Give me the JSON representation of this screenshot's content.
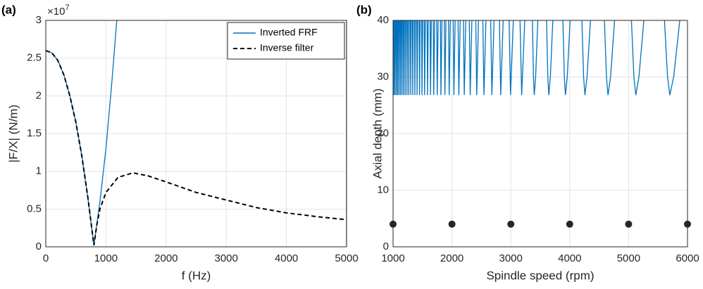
{
  "chart_data": [
    {
      "type": "line",
      "panel_label": "(a)",
      "xlabel": "f (Hz)",
      "ylabel": "|F/X| (N/m)",
      "y_multiplier": {
        "base": "×10",
        "exponent": 7
      },
      "xlim": [
        0,
        5000
      ],
      "xticks": [
        0,
        1000,
        2000,
        3000,
        4000,
        5000
      ],
      "ylim": [
        0,
        3
      ],
      "yticks": [
        0,
        0.5,
        1,
        1.5,
        2,
        2.5,
        3
      ],
      "grid": true,
      "legend": "upper right",
      "series": [
        {
          "name": "Inverted FRF",
          "color": "#0072bd",
          "linestyle": "solid",
          "x": [
            0,
            100,
            200,
            300,
            400,
            500,
            600,
            700,
            800,
            900,
            1000,
            1100,
            1180,
            null,
            5000,
            5000
          ],
          "values": [
            2.6,
            2.57,
            2.47,
            2.28,
            2.0,
            1.65,
            1.2,
            0.65,
            0.02,
            0.6,
            1.3,
            2.2,
            3,
            null,
            0.02,
            3
          ]
        },
        {
          "name": "Inverse filter",
          "color": "#000000",
          "linestyle": "dashed",
          "x": [
            0,
            100,
            200,
            300,
            400,
            500,
            600,
            700,
            800,
            850,
            900,
            1000,
            1200,
            1450,
            1700,
            2000,
            2500,
            3000,
            3500,
            4000,
            4500,
            5000
          ],
          "values": [
            2.6,
            2.57,
            2.47,
            2.28,
            2.0,
            1.65,
            1.2,
            0.65,
            0.02,
            0.3,
            0.5,
            0.72,
            0.92,
            0.98,
            0.94,
            0.86,
            0.72,
            0.62,
            0.52,
            0.45,
            0.4,
            0.36
          ]
        }
      ]
    },
    {
      "type": "line",
      "panel_label": "(b)",
      "xlabel": "Spindle speed (rpm)",
      "ylabel": "Axial depth (mm)",
      "xlim": [
        1000,
        6000
      ],
      "xticks": [
        1000,
        2000,
        3000,
        4000,
        5000,
        6000
      ],
      "ylim": [
        0,
        40
      ],
      "yticks": [
        0,
        10,
        20,
        30,
        40
      ],
      "grid": true,
      "series": [
        {
          "color": "#0072bd",
          "linestyle": "solid",
          "x": [
            1011,
            1014,
            1019,
            null,
            1031,
            1034,
            1040,
            null,
            1053,
            1056,
            1062,
            null,
            1075,
            1078,
            1084,
            null,
            1098,
            1101,
            1107,
            null,
            1122,
            1126,
            1133,
            null,
            1147,
            1151,
            1158,
            null,
            1174,
            1178,
            1185,
            null,
            1202,
            1206,
            1214,
            null,
            1232,
            1236,
            1244,
            null,
            1263,
            1267,
            1275,
            null,
            1295,
            1300,
            1309,
            null,
            1329,
            1334,
            1343,
            null,
            1365,
            1370,
            1380,
            null,
            1402,
            1408,
            1418,
            null,
            1443,
            1449,
            1460,
            null,
            1485,
            1491,
            1503,
            null,
            1529,
            1536,
            1548,
            null,
            1578,
            1585,
            1598,
            null,
            1629,
            1636,
            1650,
            null,
            1683,
            1691,
            1706,
            null,
            1741,
            1750,
            1766,
            null,
            1804,
            1813,
            1830,
            null,
            1870,
            1880,
            1898,
            null,
            1942,
            1953,
            1973,
            null,
            2021,
            2033,
            2054,
            null,
            2104,
            2117,
            2140,
            null,
            2195,
            2209,
            2234,
            null,
            2295,
            2310,
            2338,
            null,
            2405,
            2421,
            2451,
            null,
            2525,
            2543,
            2577,
            null,
            2658,
            2678,
            2715,
            null,
            2806,
            2828,
            2870,
            null,
            2970,
            2995,
            3042,
            null,
            3156,
            3184,
            3237,
            null,
            3366,
            3384,
            3398,
            3421,
            3458,
            null,
            3607,
            3628,
            3644,
            3671,
            3713,
            null,
            3884,
            3909,
            3927,
            3958,
            4007,
            null,
            4207,
            4236,
            4258,
            4294,
            4352,
            null,
            4589,
            4624,
            4650,
            4693,
            4762,
            null,
            5048,
            5090,
            5122,
            5175,
            5259,
            null,
            5609,
            5661,
            5700,
            5765,
            5869
          ],
          "values": [
            40,
            26.8,
            40,
            null,
            40,
            26.8,
            40,
            null,
            40,
            26.8,
            40,
            null,
            40,
            26.8,
            40,
            null,
            40,
            26.8,
            40,
            null,
            40,
            26.8,
            40,
            null,
            40,
            26.8,
            40,
            null,
            40,
            26.8,
            40,
            null,
            40,
            26.8,
            40,
            null,
            40,
            26.8,
            40,
            null,
            40,
            26.8,
            40,
            null,
            40,
            26.8,
            40,
            null,
            40,
            26.8,
            40,
            null,
            40,
            26.8,
            40,
            null,
            40,
            26.8,
            40,
            null,
            40,
            26.8,
            40,
            null,
            40,
            26.8,
            40,
            null,
            40,
            26.8,
            40,
            null,
            40,
            26.8,
            40,
            null,
            40,
            26.8,
            40,
            null,
            40,
            26.8,
            40,
            null,
            40,
            26.8,
            40,
            null,
            40,
            26.8,
            40,
            null,
            40,
            26.8,
            40,
            null,
            40,
            26.8,
            40,
            null,
            40,
            26.8,
            40,
            null,
            40,
            26.8,
            40,
            null,
            40,
            26.8,
            40,
            null,
            40,
            26.8,
            40,
            null,
            40,
            26.8,
            40,
            null,
            40,
            26.8,
            40,
            null,
            40,
            26.8,
            40,
            null,
            40,
            26.8,
            40,
            null,
            40,
            26.8,
            40,
            null,
            40,
            26.8,
            40,
            null,
            40,
            30,
            26.8,
            30,
            40,
            null,
            40,
            30,
            26.8,
            30,
            40,
            null,
            40,
            30,
            26.8,
            30,
            40,
            null,
            40,
            30,
            26.8,
            30,
            40,
            null,
            40,
            30,
            26.8,
            30,
            40,
            null,
            40,
            30,
            26.8,
            30,
            40,
            null,
            40,
            30,
            26.8,
            30,
            40
          ]
        },
        {
          "color": "#262626",
          "linestyle": "none",
          "marker": "circle",
          "x": [
            1000,
            2000,
            3000,
            4000,
            5000,
            6000
          ],
          "values": [
            4,
            4,
            4,
            4,
            4,
            4
          ]
        }
      ]
    }
  ]
}
